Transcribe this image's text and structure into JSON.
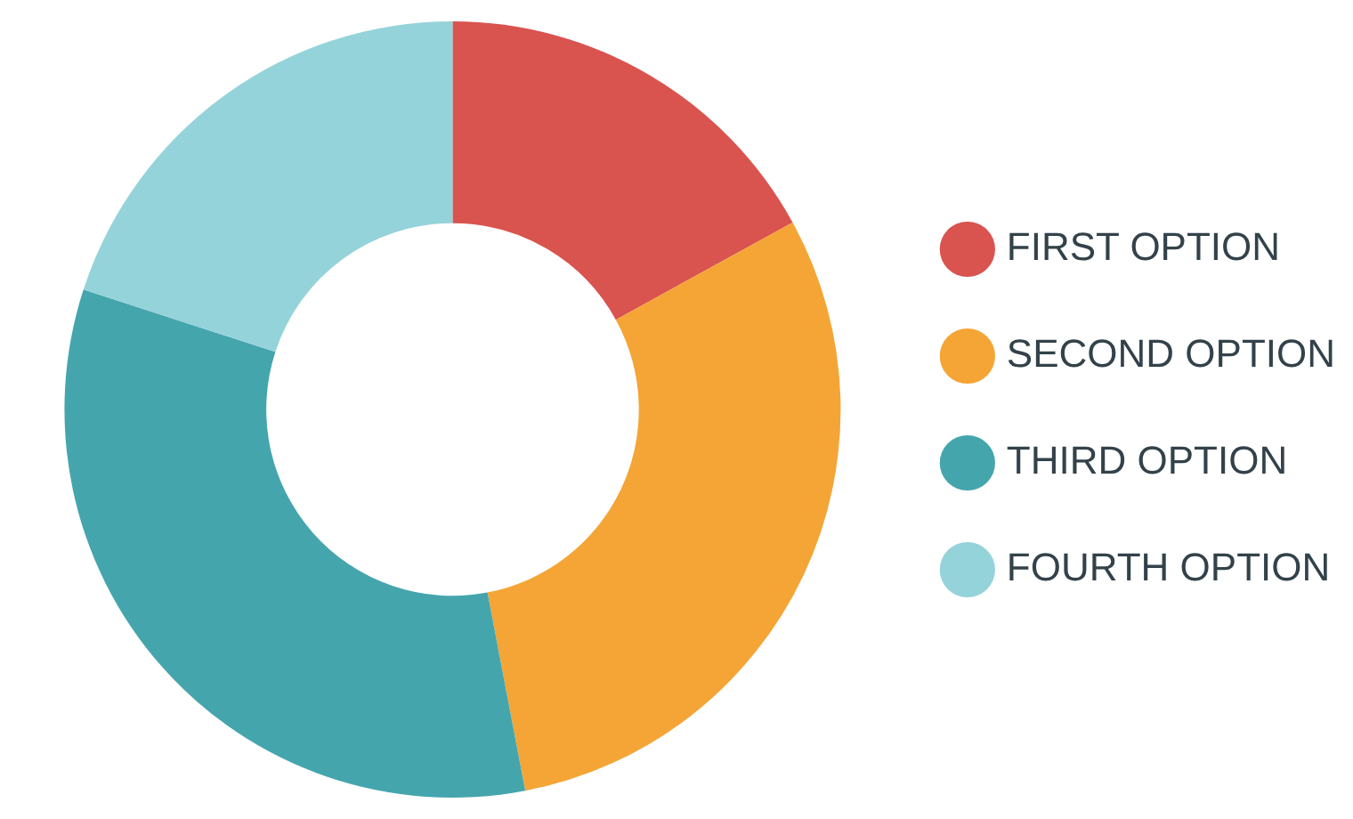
{
  "chart_data": {
    "type": "donut",
    "categories": [
      "FIRST OPTION",
      "SECOND OPTION",
      "THIRD OPTION",
      "FOURTH OPTION"
    ],
    "values": [
      17,
      30,
      33,
      20
    ],
    "colors": [
      "#d9534f",
      "#f4a536",
      "#45a5ad",
      "#95d3da"
    ],
    "legend": "right"
  }
}
